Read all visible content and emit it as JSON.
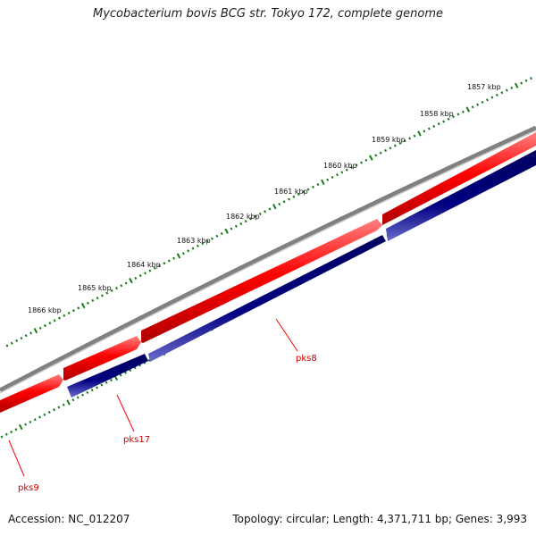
{
  "title": "Mycobacterium bovis BCG str. Tokyo 172, complete genome",
  "footer": {
    "accession": "Accession: NC_012207",
    "summary": "Topology: circular; Length: 4,371,711 bp; Genes: 3,993"
  },
  "colors": {
    "backbone": "#808080",
    "forward_gene": "#ff0000",
    "reverse_gene": "#000080",
    "tick": "#1a7a1a",
    "label_line": "#ff0000",
    "label_text": "#cc0000"
  },
  "ruler_ticks": [
    {
      "label": "1857 kbp"
    },
    {
      "label": "1858 kbp"
    },
    {
      "label": "1859 kbp"
    },
    {
      "label": "1860 kbp"
    },
    {
      "label": "1861 kbp"
    },
    {
      "label": "1862 kbp"
    },
    {
      "label": "1863 kbp"
    },
    {
      "label": "1864 kbp"
    },
    {
      "label": "1865 kbp"
    },
    {
      "label": "1866 kbp"
    }
  ],
  "gene_labels": [
    {
      "name": "pks8"
    },
    {
      "name": "pks17"
    },
    {
      "name": "pks9"
    }
  ]
}
